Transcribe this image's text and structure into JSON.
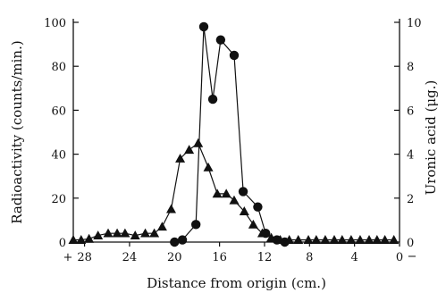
{
  "chart_data": {
    "type": "line",
    "xlabel": "Distance from origin (cm.)",
    "ylabel_left": "Radioactivity (counts/min.)",
    "ylabel_right": "Uronic acid (μg.)",
    "x_reversed": true,
    "xlim": [
      29,
      0
    ],
    "ylim_left": [
      0,
      100
    ],
    "ylim_right": [
      0,
      10
    ],
    "x_tick_labels": [
      "28",
      "24",
      "20",
      "16",
      "12",
      "8",
      "4",
      "0"
    ],
    "x_tick_values": [
      28,
      24,
      20,
      16,
      12,
      8,
      4,
      0
    ],
    "x_extra_labels": {
      "left": "+",
      "right": "−"
    },
    "y_left_ticks": [
      0,
      20,
      40,
      60,
      80,
      100
    ],
    "y_right_ticks": [
      0,
      2,
      4,
      6,
      8,
      10
    ],
    "grid": false,
    "series": [
      {
        "marker": "circle",
        "axis": "left",
        "x": [
          20,
          19.3,
          18.1,
          17.4,
          16.6,
          15.9,
          14.7,
          13.9,
          12.6,
          11.9,
          10.9,
          10.2
        ],
        "y": [
          0,
          1,
          8,
          98,
          65,
          92,
          85,
          23,
          16,
          4,
          1,
          0
        ]
      },
      {
        "marker": "triangle",
        "axis": "right",
        "x": [
          29,
          28.3,
          27.6,
          26.8,
          25.9,
          25.1,
          24.4,
          23.5,
          22.6,
          21.8,
          21.1,
          20.3,
          19.5,
          18.7,
          17.9,
          17.0,
          16.2,
          15.4,
          14.7,
          13.8,
          13.0,
          12.2,
          11.4,
          10.6,
          9.8,
          9.0,
          8.1,
          7.4,
          6.6,
          5.8,
          5.1,
          4.3,
          3.5,
          2.7,
          2.0,
          1.3,
          0.5
        ],
        "y": [
          0.1,
          0.1,
          0.15,
          0.3,
          0.4,
          0.4,
          0.4,
          0.3,
          0.4,
          0.4,
          0.7,
          1.5,
          3.8,
          4.2,
          4.5,
          3.4,
          2.2,
          2.2,
          1.9,
          1.4,
          0.8,
          0.4,
          0.2,
          0.1,
          0.1,
          0.1,
          0.1,
          0.1,
          0.1,
          0.1,
          0.1,
          0.1,
          0.1,
          0.1,
          0.1,
          0.1,
          0.1
        ]
      }
    ]
  }
}
